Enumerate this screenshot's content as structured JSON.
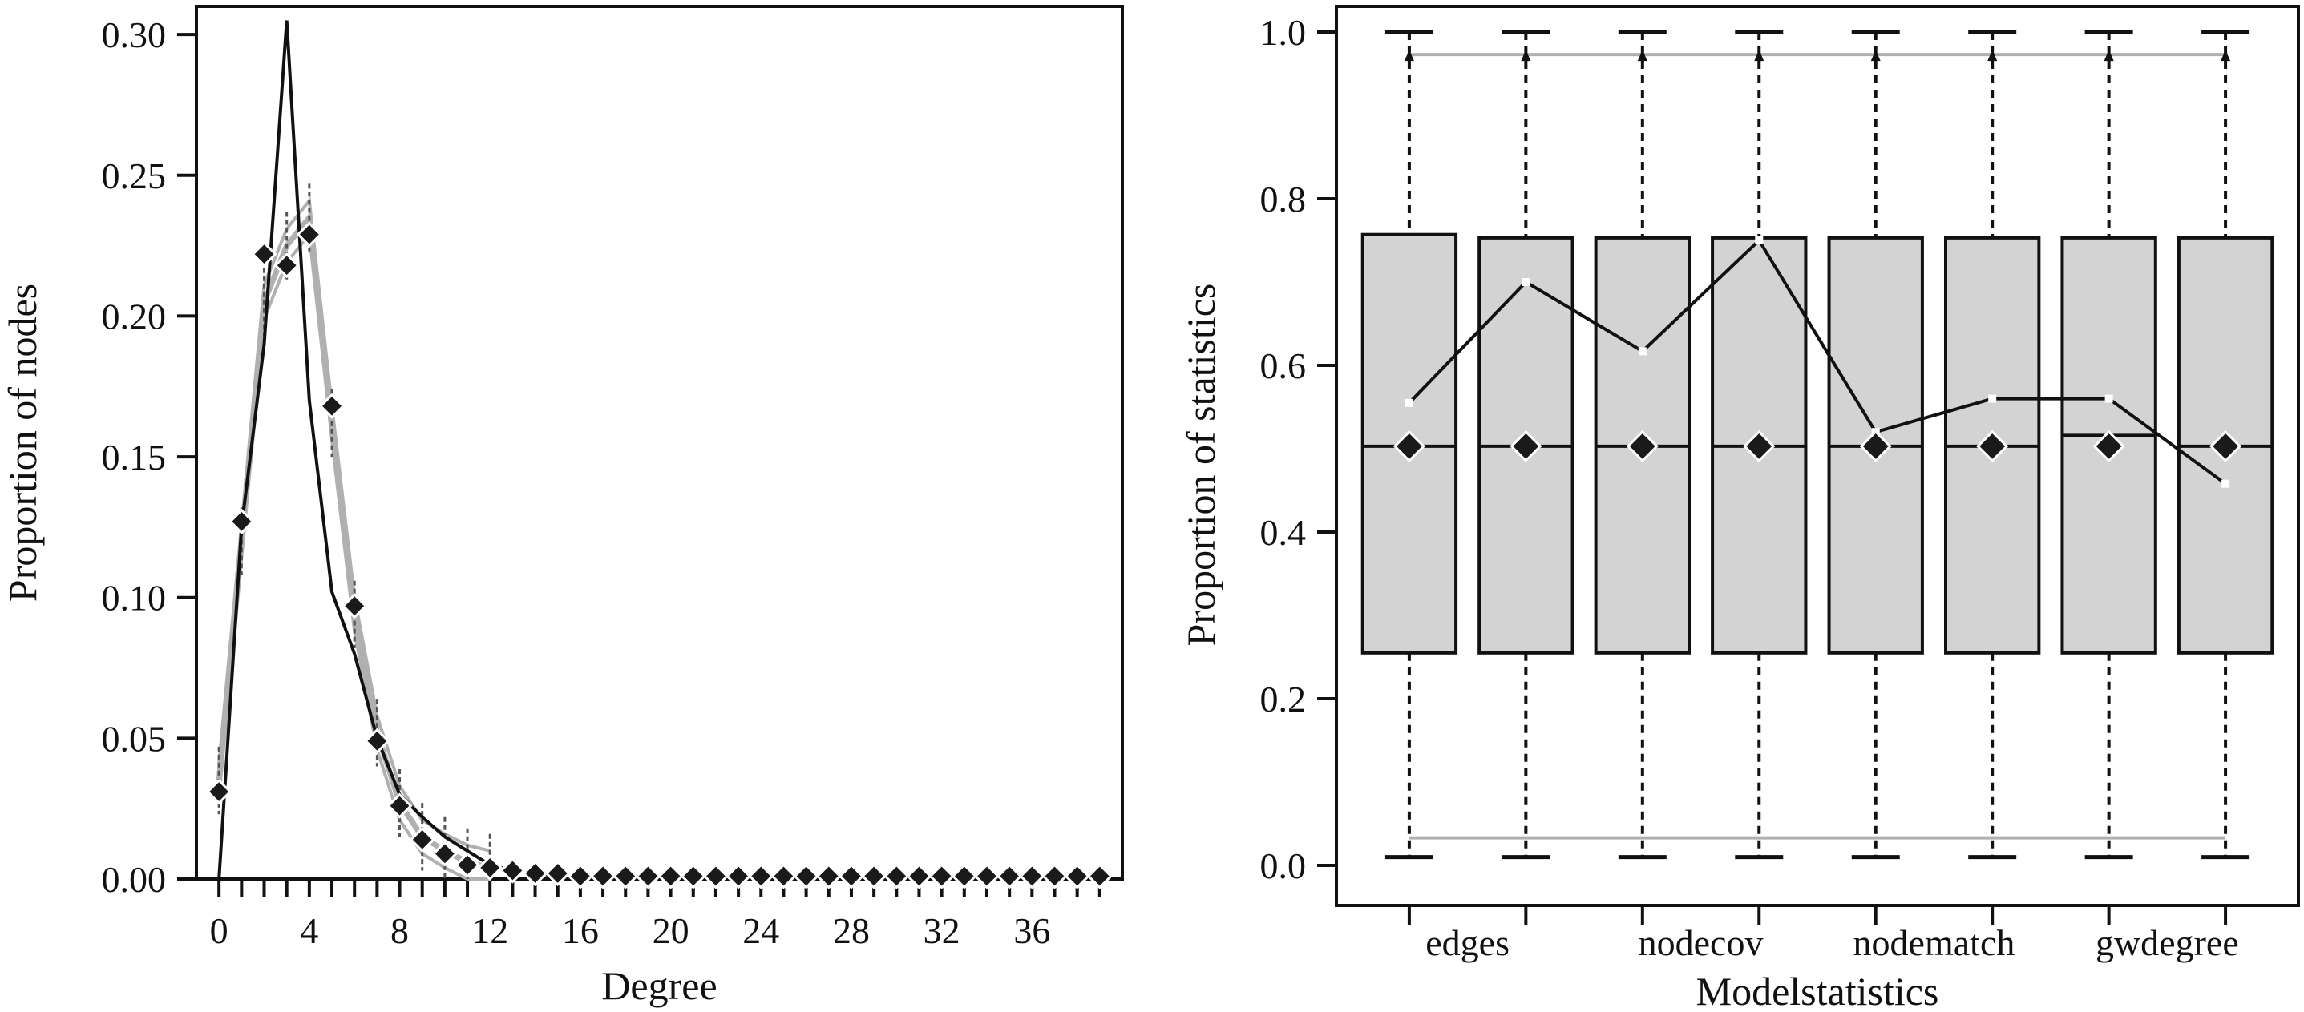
{
  "chart_data": [
    {
      "type": "line",
      "xlabel": "Degree",
      "ylabel": "Proportion of nodes",
      "xlim": [
        -1,
        40
      ],
      "ylim": [
        0,
        0.31
      ],
      "grid": false,
      "x_ticks": [
        0,
        4,
        8,
        12,
        16,
        20,
        24,
        28,
        32,
        36
      ],
      "x_tick_labels": [
        "0",
        "4",
        "8",
        "12",
        "16",
        "20",
        "24",
        "28",
        "32",
        "36"
      ],
      "y_ticks": [
        0,
        0.05,
        0.1,
        0.15,
        0.2,
        0.25,
        0.3
      ],
      "y_tick_labels": [
        "0.00",
        "0.05",
        "0.10",
        "0.15",
        "0.20",
        "0.25",
        "0.30"
      ],
      "x": [
        0,
        1,
        2,
        3,
        4,
        5,
        6,
        7,
        8,
        9,
        10,
        11,
        12,
        13,
        14,
        15,
        16,
        17,
        18,
        19,
        20,
        21,
        22,
        23,
        24,
        25,
        26,
        27,
        28,
        29,
        30,
        31,
        32,
        33,
        34,
        35,
        36,
        37,
        38,
        39
      ],
      "series": [
        {
          "color": "#b0b0b0",
          "style": "simulated-range",
          "values": [
            0.035,
            0.12,
            0.205,
            0.225,
            0.235,
            0.162,
            0.094,
            0.052,
            0.027,
            0.015,
            0.01,
            0.006,
            0.004,
            0.003,
            0.002,
            0.002,
            0.001,
            0.001,
            0.001,
            0.001,
            0,
            0,
            0,
            0,
            0,
            0,
            0,
            0,
            0,
            0,
            0,
            0,
            0,
            0,
            0,
            0,
            0,
            0,
            0,
            0
          ]
        },
        {
          "color": "#111111",
          "style": "observed",
          "values": [
            0,
            0.125,
            0.19,
            0.305,
            0.17,
            0.102,
            0.08,
            0.05,
            0.03,
            0.022,
            0.015,
            0.01,
            0.005,
            0.003,
            0.002,
            0.001,
            0.001,
            0.001,
            0,
            0,
            0,
            0,
            0,
            0,
            0,
            0,
            0,
            0,
            0,
            0,
            0,
            0,
            0,
            0,
            0,
            0,
            0,
            0,
            0,
            0
          ]
        },
        {
          "color": "#222222",
          "style": "diamond-markers",
          "values": [
            0.031,
            0.127,
            0.222,
            0.218,
            0.229,
            0.168,
            0.097,
            0.049,
            0.026,
            0.014,
            0.009,
            0.005,
            0.004,
            0.003,
            0.002,
            0.002,
            0.001,
            0.001,
            0.001,
            0.001,
            0.001,
            0.001,
            0.001,
            0.001,
            0.001,
            0.001,
            0.001,
            0.001,
            0.001,
            0.001,
            0.001,
            0.001,
            0.001,
            0.001,
            0.001,
            0.001,
            0.001,
            0.001,
            0.001,
            0.001
          ]
        }
      ]
    },
    {
      "type": "box",
      "xlabel": "Modelstatistics",
      "ylabel": "Proportion of statistics",
      "ylim": [
        0,
        1.0
      ],
      "grid": false,
      "y_ticks": [
        0,
        0.2,
        0.4,
        0.6,
        0.8,
        1.0
      ],
      "y_tick_labels": [
        "0.0",
        "0.2",
        "0.4",
        "0.6",
        "0.8",
        "1.0"
      ],
      "x_tick_labels": [
        {
          "label": "edges",
          "position": 1.5
        },
        {
          "label": "nodecov",
          "position": 3.5
        },
        {
          "label": "nodematch",
          "position": 5.5
        },
        {
          "label": "gwdegree",
          "position": 7.5
        }
      ],
      "boxes": [
        {
          "q1": 0.255,
          "median": 0.503,
          "q3": 0.757,
          "whisker_low": 0.01,
          "whisker_high": 1.0,
          "mean": 0.503
        },
        {
          "q1": 0.255,
          "median": 0.503,
          "q3": 0.753,
          "whisker_low": 0.01,
          "whisker_high": 1.0,
          "mean": 0.503
        },
        {
          "q1": 0.255,
          "median": 0.503,
          "q3": 0.753,
          "whisker_low": 0.01,
          "whisker_high": 1.0,
          "mean": 0.503
        },
        {
          "q1": 0.255,
          "median": 0.503,
          "q3": 0.753,
          "whisker_low": 0.01,
          "whisker_high": 1.0,
          "mean": 0.503
        },
        {
          "q1": 0.255,
          "median": 0.503,
          "q3": 0.753,
          "whisker_low": 0.01,
          "whisker_high": 1.0,
          "mean": 0.503
        },
        {
          "q1": 0.255,
          "median": 0.503,
          "q3": 0.753,
          "whisker_low": 0.01,
          "whisker_high": 1.0,
          "mean": 0.503
        },
        {
          "q1": 0.255,
          "median": 0.516,
          "q3": 0.753,
          "whisker_low": 0.01,
          "whisker_high": 1.0,
          "mean": 0.503
        },
        {
          "q1": 0.255,
          "median": 0.503,
          "q3": 0.753,
          "whisker_low": 0.01,
          "whisker_high": 1.0,
          "mean": 0.503
        }
      ],
      "observed_line": [
        0.555,
        0.7,
        0.617,
        0.75,
        0.52,
        0.56,
        0.56,
        0.458
      ],
      "range_lines": {
        "upper": 0.973,
        "lower": 0.033,
        "color": "#b0b0b0"
      },
      "box_fill": "#d3d3d3"
    }
  ]
}
